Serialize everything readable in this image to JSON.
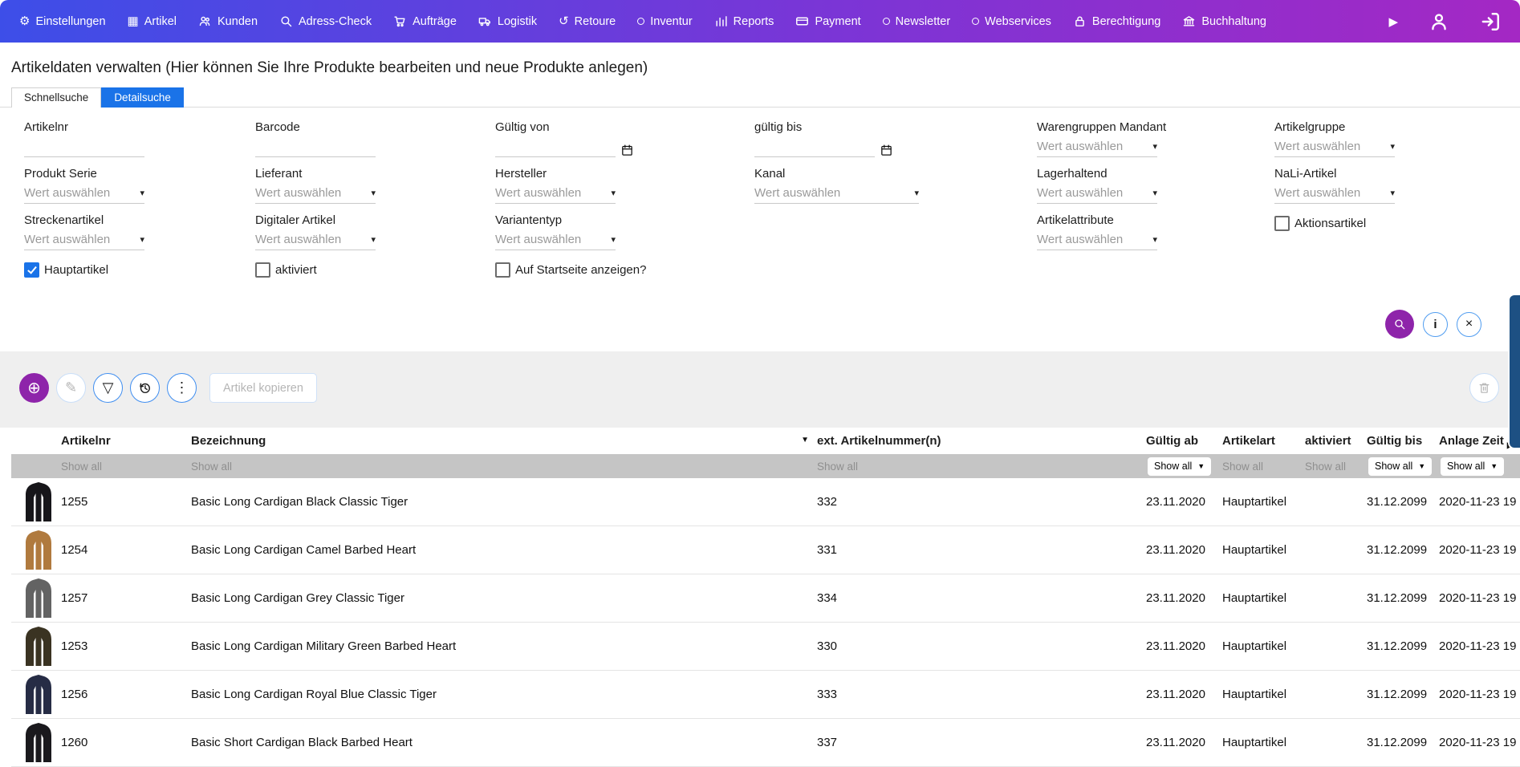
{
  "colors": {
    "nav_gradient_start": "#3d4ee8",
    "nav_gradient_end": "#a428c4",
    "accent_purple": "#8e24aa",
    "accent_blue": "#1a73e8",
    "tab_active_bg": "#1a73e8",
    "filter_row_bg": "#c5c5c5",
    "side_strip_blue": "#1d5083"
  },
  "navbar": {
    "items": [
      {
        "label": "Einstellungen",
        "icon": "gear"
      },
      {
        "label": "Artikel",
        "icon": "box"
      },
      {
        "label": "Kunden",
        "icon": "users"
      },
      {
        "label": "Adress-Check",
        "icon": "search"
      },
      {
        "label": "Aufträge",
        "icon": "cart"
      },
      {
        "label": "Logistik",
        "icon": "truck"
      },
      {
        "label": "Retoure",
        "icon": "return"
      },
      {
        "label": "Inventur",
        "icon": "dot"
      },
      {
        "label": "Reports",
        "icon": "chart"
      },
      {
        "label": "Payment",
        "icon": "card"
      },
      {
        "label": "Newsletter",
        "icon": "dot"
      },
      {
        "label": "Webservices",
        "icon": "dot"
      },
      {
        "label": "Berechtigung",
        "icon": "lock"
      },
      {
        "label": "Buchhaltung",
        "icon": "bank"
      }
    ]
  },
  "page": {
    "title": "Artikeldaten verwalten (Hier können Sie Ihre Produkte bearbeiten und neue Produkte anlegen)"
  },
  "tabs": [
    {
      "label": "Schnellsuche",
      "active": false
    },
    {
      "label": "Detailsuche",
      "active": true
    }
  ],
  "filters": {
    "select_placeholder": "Wert auswählen",
    "cells": [
      {
        "label": "Artikelnr",
        "type": "text"
      },
      {
        "label": "Barcode",
        "type": "text"
      },
      {
        "label": "Gültig von",
        "type": "date"
      },
      {
        "label": "gültig bis",
        "type": "date"
      },
      {
        "label": "Warengruppen Mandant",
        "type": "select"
      },
      {
        "label": "Artikelgruppe",
        "type": "select"
      },
      {
        "label": "Produkt Serie",
        "type": "select"
      },
      {
        "label": "Lieferant",
        "type": "select"
      },
      {
        "label": "Hersteller",
        "type": "select"
      },
      {
        "label": "Kanal",
        "type": "select",
        "wide": true
      },
      {
        "label": "Lagerhaltend",
        "type": "select"
      },
      {
        "label": "NaLi-Artikel",
        "type": "select"
      },
      {
        "label": "Streckenartikel",
        "type": "select"
      },
      {
        "label": "Digitaler Artikel",
        "type": "select"
      },
      {
        "label": "Variantentyp",
        "type": "select"
      },
      {
        "label": "",
        "type": "empty"
      },
      {
        "label": "Artikelattribute",
        "type": "select"
      },
      {
        "label": "Aktionsartikel",
        "type": "checkbox",
        "checked": false
      },
      {
        "label": "Hauptartikel",
        "type": "checkbox",
        "checked": true
      },
      {
        "label": "aktiviert",
        "type": "checkbox",
        "checked": false
      },
      {
        "label": "Auf Startseite anzeigen?",
        "type": "checkbox",
        "checked": false
      }
    ]
  },
  "toolbar": {
    "copy_label": "Artikel kopieren"
  },
  "table": {
    "filter_label": "Show all",
    "columns": [
      {
        "label": "",
        "filter": "none"
      },
      {
        "label": "Artikelnr",
        "filter": "text"
      },
      {
        "label": "Bezeichnung",
        "filter": "text",
        "sorted": "desc"
      },
      {
        "label": "ext. Artikelnummer(n)",
        "filter": "text"
      },
      {
        "label": "Gültig ab",
        "filter": "dropdown"
      },
      {
        "label": "Artikelart",
        "filter": "text"
      },
      {
        "label": "aktiviert",
        "filter": "text"
      },
      {
        "label": "Gültig bis",
        "filter": "dropdown"
      },
      {
        "label": "Anlage Zeit",
        "filter": "dropdown",
        "more_arrow": true
      }
    ],
    "rows": [
      {
        "image": "cardigan-black-long",
        "image_color": "#17161a",
        "artikelnr": "1255",
        "bezeichnung": "Basic Long Cardigan Black Classic Tiger",
        "ext_nr": "332",
        "gueltig_ab": "23.11.2020",
        "artikelart": "Hauptartikel",
        "aktiviert": true,
        "gueltig_bis": "31.12.2099",
        "anlage_zeit": "2020-11-23 19"
      },
      {
        "image": "cardigan-camel-long",
        "image_color": "#b07a3e",
        "artikelnr": "1254",
        "bezeichnung": "Basic Long Cardigan Camel Barbed Heart",
        "ext_nr": "331",
        "gueltig_ab": "23.11.2020",
        "artikelart": "Hauptartikel",
        "aktiviert": true,
        "gueltig_bis": "31.12.2099",
        "anlage_zeit": "2020-11-23 19"
      },
      {
        "image": "cardigan-grey-long",
        "image_color": "#636363",
        "artikelnr": "1257",
        "bezeichnung": "Basic Long Cardigan Grey Classic Tiger",
        "ext_nr": "334",
        "gueltig_ab": "23.11.2020",
        "artikelart": "Hauptartikel",
        "aktiviert": true,
        "gueltig_bis": "31.12.2099",
        "anlage_zeit": "2020-11-23 19"
      },
      {
        "image": "cardigan-green-long",
        "image_color": "#3a3322",
        "artikelnr": "1253",
        "bezeichnung": "Basic Long Cardigan Military Green Barbed Heart",
        "ext_nr": "330",
        "gueltig_ab": "23.11.2020",
        "artikelart": "Hauptartikel",
        "aktiviert": true,
        "gueltig_bis": "31.12.2099",
        "anlage_zeit": "2020-11-23 19"
      },
      {
        "image": "cardigan-blue-long",
        "image_color": "#262c45",
        "artikelnr": "1256",
        "bezeichnung": "Basic Long Cardigan Royal Blue Classic Tiger",
        "ext_nr": "333",
        "gueltig_ab": "23.11.2020",
        "artikelart": "Hauptartikel",
        "aktiviert": true,
        "gueltig_bis": "31.12.2099",
        "anlage_zeit": "2020-11-23 19"
      },
      {
        "image": "cardigan-black-short",
        "image_color": "#1a191d",
        "artikelnr": "1260",
        "bezeichnung": "Basic Short Cardigan Black Barbed Heart",
        "ext_nr": "337",
        "gueltig_ab": "23.11.2020",
        "artikelart": "Hauptartikel",
        "aktiviert": true,
        "gueltig_bis": "31.12.2099",
        "anlage_zeit": "2020-11-23 19"
      }
    ]
  }
}
